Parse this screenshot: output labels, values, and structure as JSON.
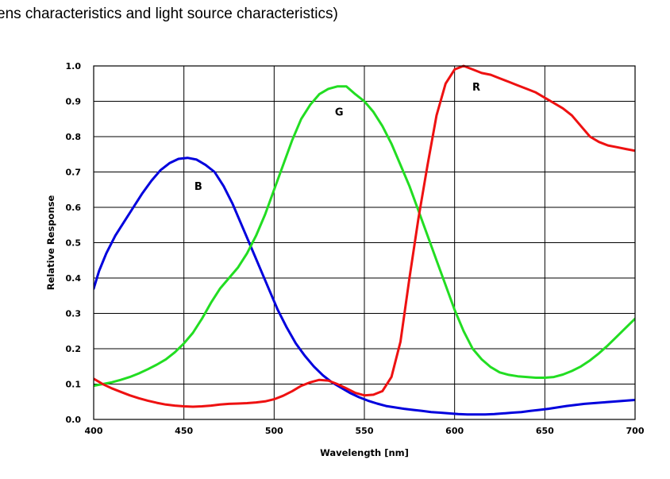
{
  "page": {
    "caption": "ens characteristics and light source characteristics)"
  },
  "chart_data": {
    "type": "line",
    "title": "",
    "xlabel": "Wavelength [nm]",
    "ylabel": "Relative Response",
    "xlim": [
      400,
      700
    ],
    "ylim": [
      0.0,
      1.0
    ],
    "xticks": [
      400,
      450,
      500,
      550,
      600,
      650,
      700
    ],
    "xtick_labels": [
      "400",
      "450",
      "500",
      "550",
      "600",
      "650",
      "700"
    ],
    "yticks": [
      0.0,
      0.1,
      0.2,
      0.3,
      0.4,
      0.5,
      0.6,
      0.7,
      0.8,
      0.9,
      1.0
    ],
    "ytick_labels": [
      "0.0",
      "0.1",
      "0.2",
      "0.3",
      "0.4",
      "0.5",
      "0.6",
      "0.7",
      "0.8",
      "0.9",
      "1.0"
    ],
    "grid": true,
    "series": [
      {
        "name": "B",
        "color": "#0000dd",
        "label_at": [
          458,
          0.65
        ],
        "x": [
          400,
          403,
          407,
          412,
          417,
          422,
          427,
          432,
          437,
          442,
          447,
          452,
          457,
          462,
          467,
          472,
          477,
          482,
          487,
          492,
          497,
          502,
          507,
          512,
          517,
          522,
          527,
          532,
          537,
          542,
          547,
          552,
          557,
          562,
          567,
          572,
          577,
          582,
          587,
          592,
          597,
          602,
          607,
          612,
          617,
          622,
          627,
          632,
          637,
          642,
          647,
          652,
          657,
          662,
          667,
          672,
          677,
          682,
          687,
          692,
          697,
          700
        ],
        "values": [
          0.37,
          0.42,
          0.47,
          0.52,
          0.56,
          0.6,
          0.64,
          0.675,
          0.705,
          0.725,
          0.737,
          0.74,
          0.735,
          0.72,
          0.7,
          0.66,
          0.61,
          0.55,
          0.49,
          0.43,
          0.37,
          0.31,
          0.26,
          0.215,
          0.18,
          0.15,
          0.125,
          0.105,
          0.09,
          0.075,
          0.063,
          0.053,
          0.045,
          0.038,
          0.034,
          0.03,
          0.027,
          0.024,
          0.021,
          0.019,
          0.017,
          0.015,
          0.014,
          0.014,
          0.014,
          0.015,
          0.017,
          0.019,
          0.021,
          0.024,
          0.027,
          0.03,
          0.034,
          0.038,
          0.041,
          0.044,
          0.046,
          0.048,
          0.05,
          0.052,
          0.054,
          0.055
        ]
      },
      {
        "name": "G",
        "color": "#22dd22",
        "label_at": [
          536,
          0.86
        ],
        "x": [
          400,
          405,
          410,
          415,
          420,
          425,
          430,
          435,
          440,
          445,
          450,
          455,
          460,
          465,
          470,
          475,
          480,
          485,
          490,
          495,
          500,
          505,
          510,
          515,
          520,
          525,
          530,
          535,
          540,
          545,
          550,
          555,
          560,
          565,
          570,
          575,
          580,
          585,
          590,
          595,
          600,
          605,
          610,
          615,
          620,
          625,
          630,
          635,
          640,
          645,
          650,
          655,
          660,
          665,
          670,
          675,
          680,
          685,
          690,
          695,
          700
        ],
        "values": [
          0.095,
          0.1,
          0.105,
          0.112,
          0.12,
          0.13,
          0.142,
          0.155,
          0.17,
          0.19,
          0.215,
          0.245,
          0.285,
          0.33,
          0.37,
          0.4,
          0.43,
          0.47,
          0.52,
          0.58,
          0.65,
          0.72,
          0.79,
          0.85,
          0.89,
          0.92,
          0.935,
          0.942,
          0.942,
          0.92,
          0.9,
          0.87,
          0.83,
          0.78,
          0.72,
          0.66,
          0.59,
          0.52,
          0.45,
          0.38,
          0.31,
          0.25,
          0.2,
          0.17,
          0.148,
          0.133,
          0.126,
          0.122,
          0.12,
          0.118,
          0.118,
          0.12,
          0.127,
          0.137,
          0.15,
          0.167,
          0.187,
          0.21,
          0.235,
          0.26,
          0.285
        ]
      },
      {
        "name": "R",
        "color": "#ee1111",
        "label_at": [
          612,
          0.93
        ],
        "x": [
          400,
          405,
          410,
          415,
          420,
          425,
          430,
          435,
          440,
          445,
          450,
          455,
          460,
          465,
          470,
          475,
          480,
          485,
          490,
          495,
          500,
          505,
          510,
          515,
          520,
          525,
          530,
          535,
          540,
          545,
          550,
          555,
          560,
          565,
          570,
          575,
          580,
          585,
          590,
          595,
          600,
          605,
          610,
          615,
          620,
          625,
          630,
          635,
          640,
          645,
          650,
          655,
          660,
          665,
          670,
          675,
          680,
          685,
          690,
          695,
          700
        ],
        "values": [
          0.115,
          0.1,
          0.088,
          0.078,
          0.068,
          0.06,
          0.053,
          0.047,
          0.042,
          0.039,
          0.037,
          0.036,
          0.037,
          0.039,
          0.042,
          0.044,
          0.045,
          0.046,
          0.048,
          0.051,
          0.057,
          0.067,
          0.08,
          0.095,
          0.105,
          0.112,
          0.11,
          0.1,
          0.088,
          0.075,
          0.068,
          0.07,
          0.08,
          0.12,
          0.22,
          0.4,
          0.57,
          0.72,
          0.86,
          0.95,
          0.99,
          1.0,
          0.99,
          0.98,
          0.975,
          0.965,
          0.955,
          0.945,
          0.935,
          0.925,
          0.91,
          0.895,
          0.88,
          0.86,
          0.83,
          0.8,
          0.785,
          0.775,
          0.77,
          0.765,
          0.76
        ]
      }
    ]
  }
}
